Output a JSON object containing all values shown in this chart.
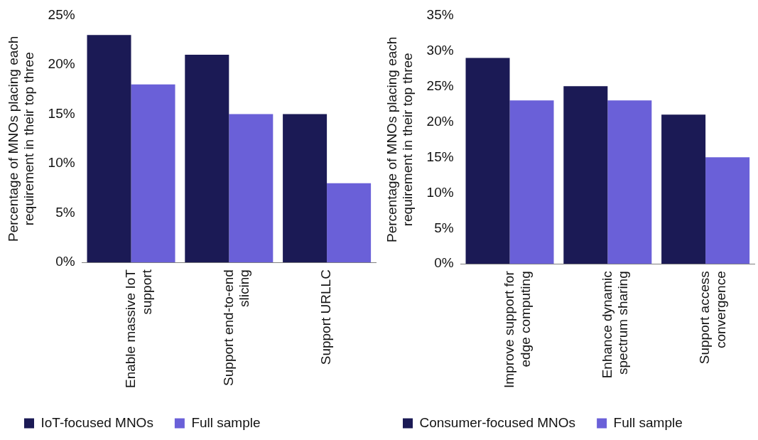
{
  "chart_data": [
    {
      "type": "bar",
      "ylabel": "Percentage of MNOs placing each requirement in their top three",
      "categories": [
        "Enable massive IoT support",
        "Support end-to-end slicing",
        "Support URLLC"
      ],
      "series": [
        {
          "name": "IoT-focused MNOs",
          "color": "#1b1a55",
          "values": [
            23,
            21,
            15
          ]
        },
        {
          "name": "Full sample",
          "color": "#6a60d8",
          "values": [
            18,
            15,
            8
          ]
        }
      ],
      "ylim": [
        0,
        25
      ],
      "yticks": [
        {
          "value": 0,
          "label": "0%"
        },
        {
          "value": 5,
          "label": "5%"
        },
        {
          "value": 10,
          "label": "10%"
        },
        {
          "value": 15,
          "label": "15%"
        },
        {
          "value": 20,
          "label": "20%"
        },
        {
          "value": 25,
          "label": "25%"
        }
      ],
      "grid": false,
      "legend": "bottom"
    },
    {
      "type": "bar",
      "ylabel": "Percentage of MNOs placing each requirement in their top three",
      "categories": [
        "Improve support for edge computing",
        "Enhance dynamic spectrum sharing",
        "Support access convergence"
      ],
      "series": [
        {
          "name": "Consumer-focused MNOs",
          "color": "#1b1a55",
          "values": [
            29,
            25,
            21
          ]
        },
        {
          "name": "Full sample",
          "color": "#6a60d8",
          "values": [
            23,
            23,
            15
          ]
        }
      ],
      "ylim": [
        0,
        35
      ],
      "yticks": [
        {
          "value": 0,
          "label": "0%"
        },
        {
          "value": 5,
          "label": "5%"
        },
        {
          "value": 10,
          "label": "10%"
        },
        {
          "value": 15,
          "label": "15%"
        },
        {
          "value": 20,
          "label": "20%"
        },
        {
          "value": 25,
          "label": "25%"
        },
        {
          "value": 30,
          "label": "30%"
        },
        {
          "value": 35,
          "label": "35%"
        }
      ],
      "grid": false,
      "legend": "bottom"
    }
  ]
}
